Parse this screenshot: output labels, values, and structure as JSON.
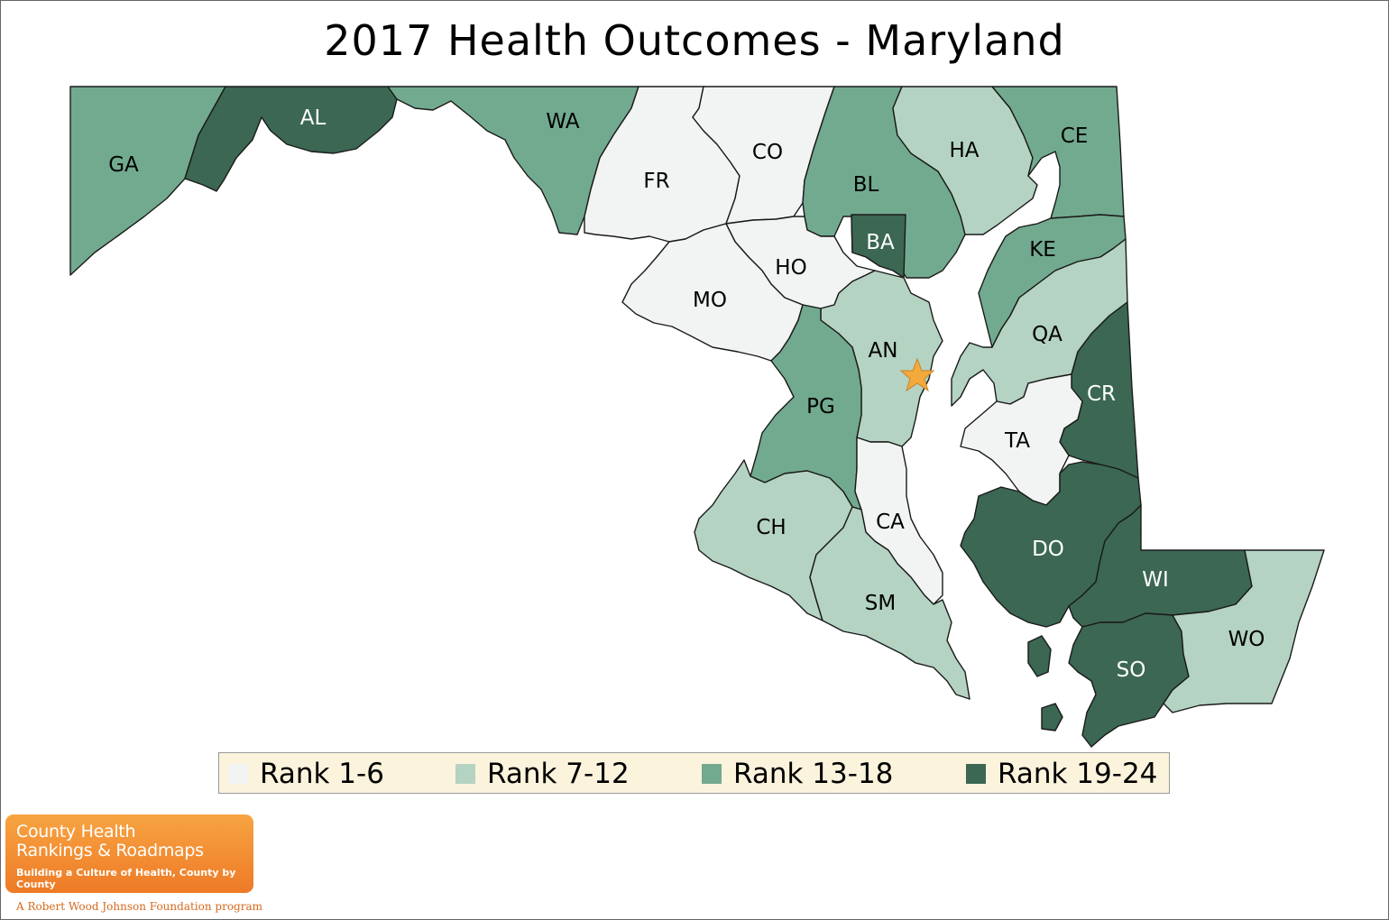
{
  "title": "2017 Health Outcomes - Maryland",
  "colors": {
    "rank_1_6": "#f1f4f2",
    "rank_7_12": "#b4d3c2",
    "rank_13_18": "#72aa8f",
    "rank_19_24": "#3b6753",
    "legend_bg": "#fbf3dc",
    "capital_star": "#f3a93c"
  },
  "legend": [
    {
      "label": "Rank 1-6",
      "color": "#f1f4f2"
    },
    {
      "label": "Rank 7-12",
      "color": "#b4d3c2"
    },
    {
      "label": "Rank 13-18",
      "color": "#72aa8f"
    },
    {
      "label": "Rank 19-24",
      "color": "#3b6753"
    }
  ],
  "counties": [
    {
      "abbr": "GA",
      "rank_group": "Rank 13-18"
    },
    {
      "abbr": "AL",
      "rank_group": "Rank 19-24"
    },
    {
      "abbr": "WA",
      "rank_group": "Rank 13-18"
    },
    {
      "abbr": "FR",
      "rank_group": "Rank 1-6"
    },
    {
      "abbr": "CO",
      "rank_group": "Rank 1-6"
    },
    {
      "abbr": "BL",
      "rank_group": "Rank 13-18"
    },
    {
      "abbr": "HA",
      "rank_group": "Rank 7-12"
    },
    {
      "abbr": "CE",
      "rank_group": "Rank 13-18"
    },
    {
      "abbr": "BA",
      "rank_group": "Rank 19-24"
    },
    {
      "abbr": "HO",
      "rank_group": "Rank 1-6"
    },
    {
      "abbr": "MO",
      "rank_group": "Rank 1-6"
    },
    {
      "abbr": "KE",
      "rank_group": "Rank 13-18"
    },
    {
      "abbr": "QA",
      "rank_group": "Rank 7-12"
    },
    {
      "abbr": "AN",
      "rank_group": "Rank 7-12"
    },
    {
      "abbr": "PG",
      "rank_group": "Rank 13-18"
    },
    {
      "abbr": "CR",
      "rank_group": "Rank 19-24"
    },
    {
      "abbr": "TA",
      "rank_group": "Rank 1-6"
    },
    {
      "abbr": "CH",
      "rank_group": "Rank 7-12"
    },
    {
      "abbr": "CA",
      "rank_group": "Rank 1-6"
    },
    {
      "abbr": "DO",
      "rank_group": "Rank 19-24"
    },
    {
      "abbr": "WI",
      "rank_group": "Rank 19-24"
    },
    {
      "abbr": "SM",
      "rank_group": "Rank 7-12"
    },
    {
      "abbr": "SO",
      "rank_group": "Rank 19-24"
    },
    {
      "abbr": "WO",
      "rank_group": "Rank 7-12"
    }
  ],
  "capital": {
    "icon": "star-icon"
  },
  "logo": {
    "line1": "County Health",
    "line2": "Rankings & Roadmaps",
    "tagline": "Building a Culture of Health, County by County"
  },
  "footer": "A Robert Wood Johnson Foundation program"
}
